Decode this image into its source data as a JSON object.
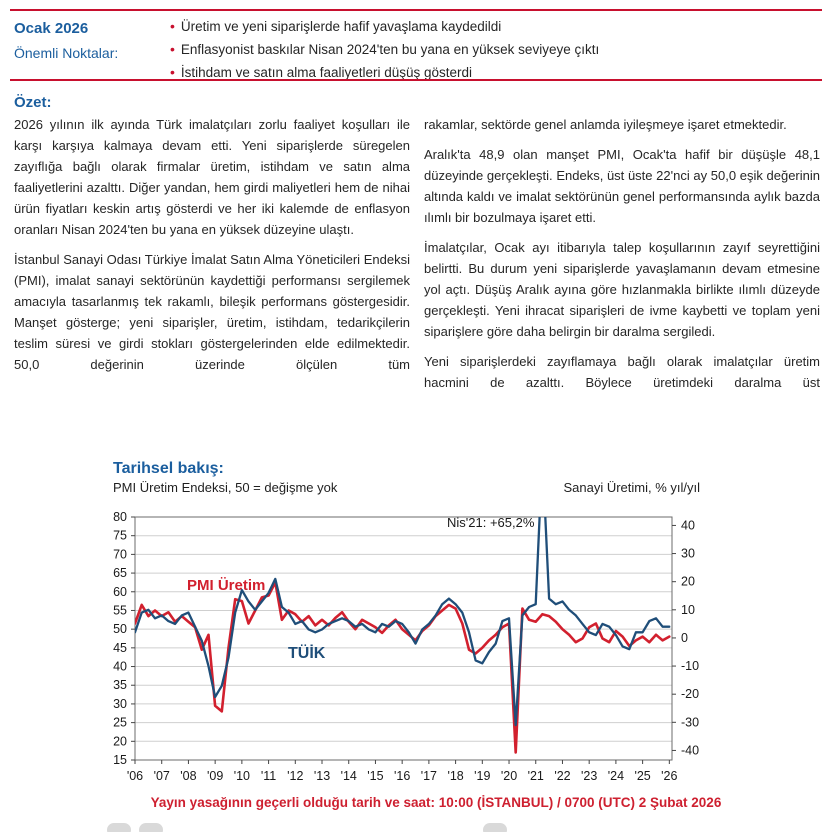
{
  "header": {
    "date": "Ocak 2026",
    "label": "Önemli Noktalar:",
    "bullet_char": "•",
    "bullets": [
      "Üretim ve yeni siparişlerde hafif yavaşlama kaydedildi",
      "Enflasyonist baskılar Nisan 2024'ten bu yana en yüksek seviyeye çıktı",
      "İstihdam ve satın alma faaliyetleri düşüş gösterdi"
    ]
  },
  "summary": {
    "heading": "Özet:",
    "left": [
      "2026 yılının ilk ayında Türk imalatçıları zorlu faaliyet koşulları ile karşı karşıya kalmaya devam etti. Yeni siparişlerde süregelen zayıflığa bağlı olarak firmalar üretim, istihdam ve satın alma faaliyetlerini azalttı. Diğer yandan, hem girdi maliyetleri hem de nihai ürün fiyatları keskin artış gösterdi ve her iki kalemde de enflasyon oranları Nisan 2024'ten bu yana en yüksek düzeyine ulaştı.",
      "İstanbul Sanayi Odası Türkiye İmalat Satın Alma Yöneticileri Endeksi (PMI), imalat sanayi sektörünün kaydettiği performansı sergilemek amacıyla tasarlanmış tek rakamlı, bileşik performans göstergesidir. Manşet gösterge; yeni siparişler, üretim, istihdam, tedarikçilerin teslim süresi ve girdi stokları göstergelerinden elde edilmektedir. 50,0 değerinin üzerinde ölçülen tüm"
    ],
    "right": [
      "rakamlar, sektörde genel anlamda iyileşmeye işaret etmektedir.",
      "Aralık'ta 48,9 olan manşet PMI, Ocak'ta hafif bir düşüşle 48,1 düzeyinde gerçekleşti. Endeks, üst üste 22'nci ay 50,0 eşik değerinin altında kaldı ve imalat sektörünün genel performansında aylık bazda ılımlı bir bozulmaya işaret etti.",
      "İmalatçılar, Ocak ayı itibarıyla talep koşullarının zayıf seyrettiğini belirtti. Bu durum yeni siparişlerde yavaşlamanın devam etmesine yol açtı. Düşüş Aralık ayına göre hızlanmakla birlikte ılımlı düzeyde gerçekleşti. Yeni ihracat siparişleri de ivme kaybetti ve toplam yeni siparişlere göre daha belirgin bir daralma sergiledi.",
      "Yeni siparişlerdeki zayıflamaya bağlı olarak imalatçılar üretim hacmini de azalttı. Böylece üretimdeki daralma üst"
    ]
  },
  "chart": {
    "title": "Tarihsel bakış:",
    "left_axis_label": "PMI Üretim Endeksi, 50 = değişme yok",
    "right_axis_label": "Sanayi Üretimi, % yıl/yıl",
    "series_labels": {
      "pmi": "PMI Üretim",
      "tuik": "TÜİK"
    }
  },
  "chart_data": {
    "type": "line",
    "title": "Tarihsel bakış",
    "x_start": 2006.0,
    "x_end": 2026.1,
    "x_step": 0.25,
    "x_tick_labels": [
      "'06",
      "'07",
      "'08",
      "'09",
      "'10",
      "'11",
      "'12",
      "'13",
      "'14",
      "'15",
      "'16",
      "'17",
      "'18",
      "'19",
      "'20",
      "'21",
      "'22",
      "'23",
      "'24",
      "'25",
      "'26"
    ],
    "left_axis": {
      "label": "PMI Üretim Endeksi, 50 = değişme yok",
      "min": 15,
      "max": 80,
      "ticks": [
        80,
        75,
        70,
        65,
        60,
        55,
        50,
        45,
        40,
        35,
        30,
        25,
        20,
        15
      ]
    },
    "right_axis": {
      "label": "Sanayi Üretimi, % yıl/yıl",
      "ticks": [
        40,
        30,
        20,
        10,
        0,
        -10,
        -20,
        -30,
        -40
      ],
      "display_min": -43.4,
      "display_max": 43.0
    },
    "grid": true,
    "series": [
      {
        "name": "pmi-uretim-line",
        "label": "PMI Üretim",
        "axis": "left",
        "color": "#D2202E",
        "values": [
          51.5,
          56.5,
          53.5,
          55,
          53.5,
          54.5,
          52,
          53.5,
          52,
          50.5,
          44.5,
          48.5,
          29.5,
          28,
          45,
          58,
          57.5,
          51.5,
          55,
          58.5,
          59,
          62.5,
          52.5,
          55,
          54,
          52,
          53.5,
          51,
          52.5,
          51,
          53,
          54.5,
          52,
          50,
          52.5,
          51.5,
          50.5,
          49,
          51,
          52.5,
          50,
          48.5,
          47,
          49.5,
          51,
          53.5,
          55,
          56.5,
          55.5,
          51.5,
          44.5,
          43.5,
          45,
          47,
          48.5,
          50.5,
          51.5,
          17,
          55.5,
          52.5,
          52,
          54,
          53.5,
          52,
          50,
          48.5,
          46.5,
          47.5,
          50.5,
          51.5,
          47.5,
          46.5,
          49.5,
          48,
          45.5,
          47,
          48,
          46.5,
          48.5,
          47,
          48
        ]
      },
      {
        "name": "tuik-line",
        "label": "TÜİK",
        "axis": "right",
        "color": "#1F4E79",
        "values": [
          2,
          9,
          10,
          7,
          8,
          6,
          5,
          8,
          9,
          4,
          -1,
          -10,
          -21,
          -17,
          -7,
          9,
          17,
          13,
          10,
          13,
          16,
          21,
          11,
          9,
          5,
          6,
          3,
          2,
          3,
          5,
          6,
          7,
          6,
          4,
          5,
          3,
          2,
          5,
          4,
          6,
          5,
          2,
          -2,
          3,
          5,
          8,
          12,
          14,
          12,
          9,
          2,
          -8,
          -9,
          -5,
          -2,
          6,
          7,
          -31,
          8,
          11,
          12,
          65.2,
          14,
          12,
          13,
          10,
          8,
          5,
          2,
          1,
          5,
          4,
          1,
          -3,
          -4,
          2,
          2,
          6,
          7,
          4,
          4
        ]
      }
    ],
    "annotation": {
      "text": "Nis'21: +65,2%",
      "x": 2021.25,
      "value": 65.2
    }
  },
  "footer": {
    "embargo": "Yayın yasağının geçerli olduğu tarih ve saat: 10:00 (İSTANBUL) / 0700 (UTC) 2 Şubat 2026"
  }
}
